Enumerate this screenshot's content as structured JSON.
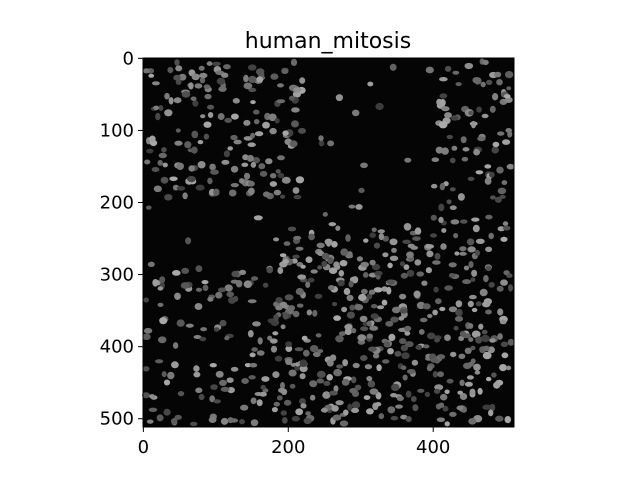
{
  "chart_data": {
    "type": "image",
    "title": "human_mitosis",
    "xlim": [
      -0.5,
      511.5
    ],
    "ylim": [
      511.5,
      -0.5
    ],
    "xticks": [
      0,
      200,
      400
    ],
    "yticks": [
      0,
      100,
      200,
      300,
      400,
      500
    ]
  }
}
